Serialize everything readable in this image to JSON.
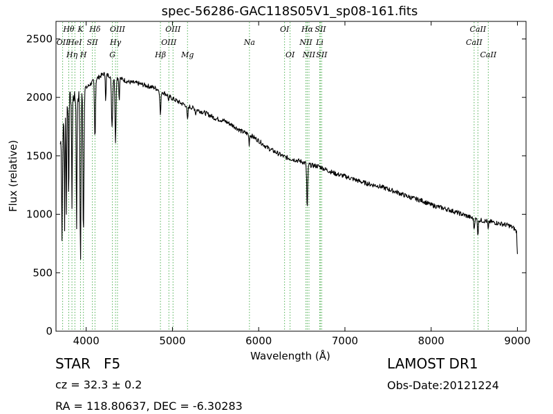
{
  "chart_data": {
    "type": "line",
    "title": "spec-56286-GAC118S05V1_sp08-161.fits",
    "xlabel": "Wavelength (Å)",
    "ylabel": "Flux (relative)",
    "xlim": [
      3650,
      9100
    ],
    "ylim": [
      0,
      2650
    ],
    "xticks": [
      4000,
      5000,
      6000,
      7000,
      8000,
      9000
    ],
    "yticks": [
      0,
      500,
      1000,
      1500,
      2000,
      2500
    ],
    "grid": false,
    "colors": {
      "line": "#000000",
      "markers": "#4caf50"
    },
    "series": [
      {
        "continuum": [
          [
            3700,
            1600
          ],
          [
            3800,
            2000
          ],
          [
            3900,
            2000
          ],
          [
            4000,
            2080
          ],
          [
            4100,
            2150
          ],
          [
            4200,
            2200
          ],
          [
            4300,
            2180
          ],
          [
            4400,
            2160
          ],
          [
            4500,
            2130
          ],
          [
            4600,
            2120
          ],
          [
            4700,
            2100
          ],
          [
            4800,
            2080
          ],
          [
            4900,
            2040
          ],
          [
            5000,
            1990
          ],
          [
            5100,
            1950
          ],
          [
            5200,
            1920
          ],
          [
            5300,
            1890
          ],
          [
            5400,
            1860
          ],
          [
            5500,
            1820
          ],
          [
            5600,
            1800
          ],
          [
            5700,
            1760
          ],
          [
            5800,
            1710
          ],
          [
            5900,
            1680
          ],
          [
            6000,
            1630
          ],
          [
            6100,
            1570
          ],
          [
            6200,
            1530
          ],
          [
            6300,
            1490
          ],
          [
            6400,
            1470
          ],
          [
            6500,
            1450
          ],
          [
            6600,
            1420
          ],
          [
            6700,
            1410
          ],
          [
            6800,
            1375
          ],
          [
            6900,
            1345
          ],
          [
            7000,
            1325
          ],
          [
            7100,
            1300
          ],
          [
            7200,
            1275
          ],
          [
            7300,
            1255
          ],
          [
            7400,
            1240
          ],
          [
            7500,
            1215
          ],
          [
            7600,
            1190
          ],
          [
            7700,
            1160
          ],
          [
            7800,
            1135
          ],
          [
            7900,
            1115
          ],
          [
            8000,
            1080
          ],
          [
            8100,
            1060
          ],
          [
            8200,
            1040
          ],
          [
            8300,
            1015
          ],
          [
            8400,
            990
          ],
          [
            8500,
            960
          ],
          [
            8600,
            945
          ],
          [
            8700,
            935
          ],
          [
            8800,
            920
          ],
          [
            8900,
            905
          ],
          [
            8960,
            880
          ],
          [
            8990,
            850
          ],
          [
            9000,
            660
          ]
        ],
        "absorption": [
          [
            3720,
            780,
            6
          ],
          [
            3750,
            880,
            5
          ],
          [
            3770,
            1000,
            5
          ],
          [
            3797,
            1060,
            5
          ],
          [
            3835,
            1080,
            6
          ],
          [
            3889,
            880,
            6
          ],
          [
            3934,
            620,
            8
          ],
          [
            3968,
            820,
            8
          ],
          [
            4102,
            1650,
            8
          ],
          [
            4227,
            1950,
            5
          ],
          [
            4300,
            1750,
            10
          ],
          [
            4340,
            1600,
            8
          ],
          [
            4383,
            1950,
            5
          ],
          [
            4861,
            1850,
            8
          ],
          [
            4957,
            1960,
            6
          ],
          [
            5175,
            1800,
            8
          ],
          [
            5270,
            1850,
            5
          ],
          [
            5890,
            1600,
            6
          ],
          [
            6563,
            1040,
            8
          ],
          [
            8498,
            870,
            6
          ],
          [
            8542,
            820,
            6
          ],
          [
            8662,
            860,
            6
          ]
        ],
        "noise_amp": 40
      }
    ],
    "line_markers": [
      {
        "x": 3727,
        "labels": [
          "OII",
          "OII"
        ],
        "rows": [
          1,
          3
        ]
      },
      {
        "x": 3798,
        "labels": [
          "Hθ"
        ],
        "rows": [
          0
        ]
      },
      {
        "x": 3835,
        "labels": [
          "Hη"
        ],
        "rows": [
          2
        ]
      },
      {
        "x": 3869,
        "labels": [
          "HeI"
        ],
        "rows": [
          1
        ]
      },
      {
        "x": 3934,
        "labels": [
          "K"
        ],
        "rows": [
          0
        ]
      },
      {
        "x": 3968,
        "labels": [
          "H"
        ],
        "rows": [
          2
        ]
      },
      {
        "x": 4072,
        "labels": [
          "SII"
        ],
        "rows": [
          1
        ]
      },
      {
        "x": 4102,
        "labels": [
          "Hδ"
        ],
        "rows": [
          0
        ]
      },
      {
        "x": 4304,
        "labels": [
          "G"
        ],
        "rows": [
          2
        ]
      },
      {
        "x": 4340,
        "labels": [
          "Hγ"
        ],
        "rows": [
          1
        ]
      },
      {
        "x": 4363,
        "labels": [
          "OIII"
        ],
        "rows": [
          0
        ]
      },
      {
        "x": 4861,
        "labels": [
          "Hβ"
        ],
        "rows": [
          2
        ]
      },
      {
        "x": 4959,
        "labels": [
          "OIII"
        ],
        "rows": [
          1
        ]
      },
      {
        "x": 5007,
        "labels": [
          "OIII"
        ],
        "rows": [
          0
        ]
      },
      {
        "x": 5175,
        "labels": [
          "Mg"
        ],
        "rows": [
          2
        ]
      },
      {
        "x": 5893,
        "labels": [
          "Na"
        ],
        "rows": [
          1
        ]
      },
      {
        "x": 6300,
        "labels": [
          "OI"
        ],
        "rows": [
          0
        ]
      },
      {
        "x": 6364,
        "labels": [
          "OI"
        ],
        "rows": [
          2
        ]
      },
      {
        "x": 6548,
        "labels": [
          "NII"
        ],
        "rows": [
          1
        ]
      },
      {
        "x": 6563,
        "labels": [
          "Hα"
        ],
        "rows": [
          0
        ]
      },
      {
        "x": 6583,
        "labels": [
          "NII"
        ],
        "rows": [
          2
        ]
      },
      {
        "x": 6708,
        "labels": [
          "Li"
        ],
        "rows": [
          1
        ]
      },
      {
        "x": 6716,
        "labels": [
          "SII"
        ],
        "rows": [
          0
        ]
      },
      {
        "x": 6731,
        "labels": [
          "SII"
        ],
        "rows": [
          2
        ]
      },
      {
        "x": 8498,
        "labels": [
          "CaII"
        ],
        "rows": [
          1
        ]
      },
      {
        "x": 8542,
        "labels": [
          "CaII"
        ],
        "rows": [
          0
        ]
      },
      {
        "x": 8662,
        "labels": [
          "CaII"
        ],
        "rows": [
          2
        ]
      }
    ]
  },
  "info": {
    "class": "STAR",
    "subclass": "F5",
    "survey": "LAMOST DR1",
    "cz": "cz = 32.3 ± 0.2",
    "obs_date": "Obs-Date:20121224",
    "radec": "RA = 118.80637, DEC = -6.30283"
  }
}
